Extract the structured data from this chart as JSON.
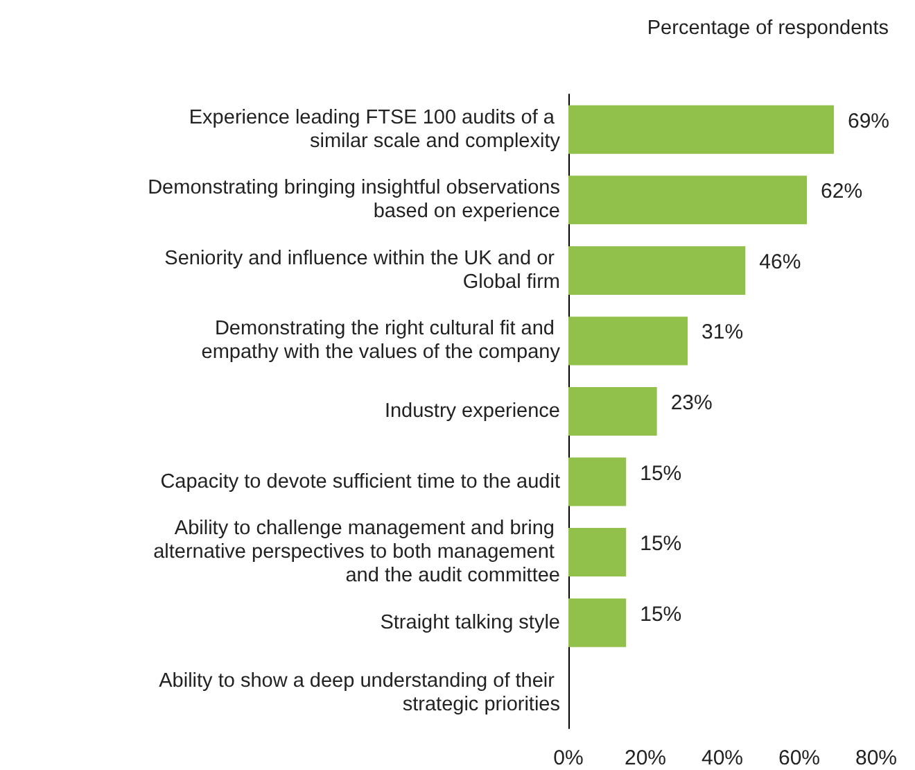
{
  "chart_data": {
    "type": "bar",
    "orientation": "horizontal",
    "xlabel": "Percentage of respondents",
    "categories": [
      "Experience leading FTSE 100 audits of a similar scale and complexity",
      "Demonstrating bringing insightful observations based on experience",
      "Seniority and influence within the UK and or Global firm",
      "Demonstrating the right cultural fit and empathy with the values of the company",
      "Industry experience",
      "Capacity to devote sufficient time to the audit",
      "Ability to challenge management and bring alternative perspectives to both management and the audit committee",
      "Straight talking style",
      "Ability to show a deep understanding of their strategic priorities"
    ],
    "values": [
      69,
      62,
      46,
      31,
      23,
      15,
      15,
      15,
      null
    ],
    "value_labels": [
      "69%",
      "62%",
      "46%",
      "31%",
      "23%",
      "15%",
      "15%",
      "15%",
      null
    ],
    "color": "#92c14b",
    "xlim": [
      0,
      80
    ],
    "xticks": [
      {
        "value": 0,
        "label": "0%"
      },
      {
        "value": 20,
        "label": "20%"
      },
      {
        "value": 40,
        "label": "40%"
      },
      {
        "value": 60,
        "label": "60%"
      },
      {
        "value": 80,
        "label": "80%"
      }
    ],
    "grid": false
  }
}
